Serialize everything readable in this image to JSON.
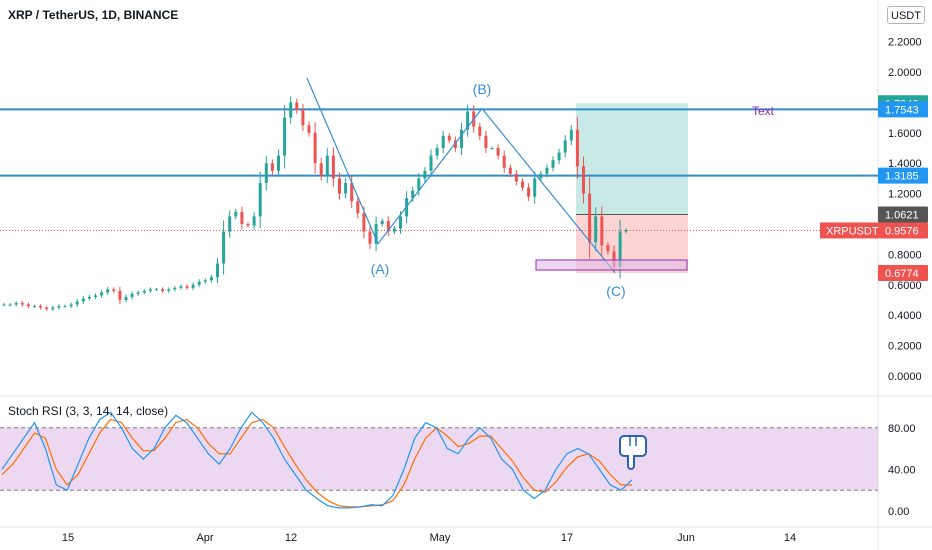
{
  "header": {
    "symbol_title": "XRP / TetherUS, 1D, BINANCE",
    "currency_badge": "USDT"
  },
  "price_axis": {
    "ticks": [
      "2.2000",
      "2.0000",
      "1.8000",
      "1.6000",
      "1.4000",
      "1.2000",
      "0.8000",
      "0.6000",
      "0.4000",
      "0.2000",
      "0.0000"
    ],
    "tick_values": [
      2.2,
      2.0,
      1.8,
      1.6,
      1.4,
      1.2,
      0.8,
      0.6,
      0.4,
      0.2,
      0.0
    ]
  },
  "time_axis": {
    "labels": [
      "15",
      "Apr",
      "12",
      "May",
      "17",
      "Jun",
      "14"
    ]
  },
  "price_labels": [
    {
      "text": "1.7940",
      "value": 1.794,
      "color": "#26a69a"
    },
    {
      "text": "1.7543",
      "value": 1.7543,
      "color": "#2196f3"
    },
    {
      "text": "1.3185",
      "value": 1.3185,
      "color": "#2196f3"
    },
    {
      "text": "1.0621",
      "value": 1.0621,
      "color": "#555555"
    },
    {
      "text": "0.9576",
      "value": 0.9576,
      "color": "#ef5350"
    },
    {
      "text": "0.6774",
      "value": 0.6774,
      "color": "#ef5350"
    }
  ],
  "symbol_tag": {
    "text": "XRPUSDT",
    "color": "#ef5350"
  },
  "drawings": {
    "wave_labels": [
      "(A)",
      "(B)",
      "(C)"
    ],
    "text_note": "Text"
  },
  "indicator": {
    "title": "Stoch RSI (3, 3, 14, 14, close)",
    "ticks": [
      "80.00",
      "40.00",
      "0.00"
    ],
    "tick_values": [
      80,
      40,
      0
    ]
  },
  "chart_data": {
    "type": "candlestick",
    "title": "XRP / TetherUS, 1D, BINANCE",
    "y_unit": "USDT",
    "ylim": [
      0,
      2.2
    ],
    "x_labels": [
      "15",
      "Apr",
      "12",
      "May",
      "17",
      "Jun",
      "14"
    ],
    "horizontal_levels": [
      1.7543,
      1.3185
    ],
    "last_price": 0.9576,
    "long_position": {
      "entry": 1.0621,
      "target": 1.794,
      "stop": 0.6774
    },
    "wave_points": [
      {
        "label": "(A)",
        "value": 0.87
      },
      {
        "label": "(B)",
        "value": 1.76
      },
      {
        "label": "(C)",
        "value": 0.69
      }
    ],
    "close_series": [
      0.47,
      0.47,
      0.48,
      0.47,
      0.46,
      0.46,
      0.45,
      0.44,
      0.45,
      0.46,
      0.46,
      0.47,
      0.49,
      0.51,
      0.52,
      0.53,
      0.55,
      0.57,
      0.56,
      0.5,
      0.52,
      0.54,
      0.55,
      0.56,
      0.57,
      0.57,
      0.56,
      0.57,
      0.58,
      0.59,
      0.58,
      0.6,
      0.62,
      0.63,
      0.65,
      0.74,
      0.95,
      1.05,
      1.08,
      1.0,
      0.99,
      1.05,
      1.27,
      1.4,
      1.35,
      1.45,
      1.7,
      1.8,
      1.75,
      1.65,
      1.6,
      1.4,
      1.32,
      1.45,
      1.3,
      1.2,
      1.27,
      1.15,
      1.07,
      0.95,
      0.87,
      1.0,
      1.02,
      0.95,
      0.97,
      1.05,
      1.17,
      1.22,
      1.3,
      1.35,
      1.45,
      1.5,
      1.58,
      1.55,
      1.5,
      1.62,
      1.74,
      1.64,
      1.58,
      1.5,
      1.5,
      1.45,
      1.37,
      1.33,
      1.28,
      1.24,
      1.18,
      1.3,
      1.33,
      1.37,
      1.42,
      1.47,
      1.55,
      1.62,
      1.38,
      1.2,
      0.88,
      1.05,
      0.86,
      0.82,
      0.72,
      0.95,
      0.96
    ],
    "stoch_rsi": {
      "k": [
        40,
        55,
        70,
        85,
        60,
        25,
        20,
        45,
        70,
        88,
        95,
        80,
        60,
        50,
        60,
        80,
        92,
        85,
        70,
        55,
        45,
        60,
        80,
        95,
        85,
        70,
        50,
        35,
        20,
        12,
        5,
        3,
        3,
        4,
        6,
        5,
        15,
        40,
        70,
        85,
        80,
        60,
        55,
        70,
        80,
        70,
        50,
        40,
        20,
        12,
        20,
        40,
        55,
        60,
        55,
        40,
        25,
        20,
        30
      ],
      "d": [
        35,
        45,
        60,
        75,
        70,
        40,
        25,
        35,
        55,
        75,
        88,
        85,
        70,
        58,
        58,
        70,
        85,
        88,
        80,
        65,
        55,
        55,
        70,
        85,
        88,
        80,
        62,
        45,
        30,
        18,
        10,
        5,
        4,
        4,
        5,
        6,
        10,
        25,
        50,
        70,
        80,
        72,
        62,
        65,
        72,
        72,
        60,
        48,
        32,
        20,
        18,
        28,
        42,
        52,
        55,
        48,
        35,
        25,
        25
      ],
      "overbought": 80,
      "oversold": 20
    }
  }
}
